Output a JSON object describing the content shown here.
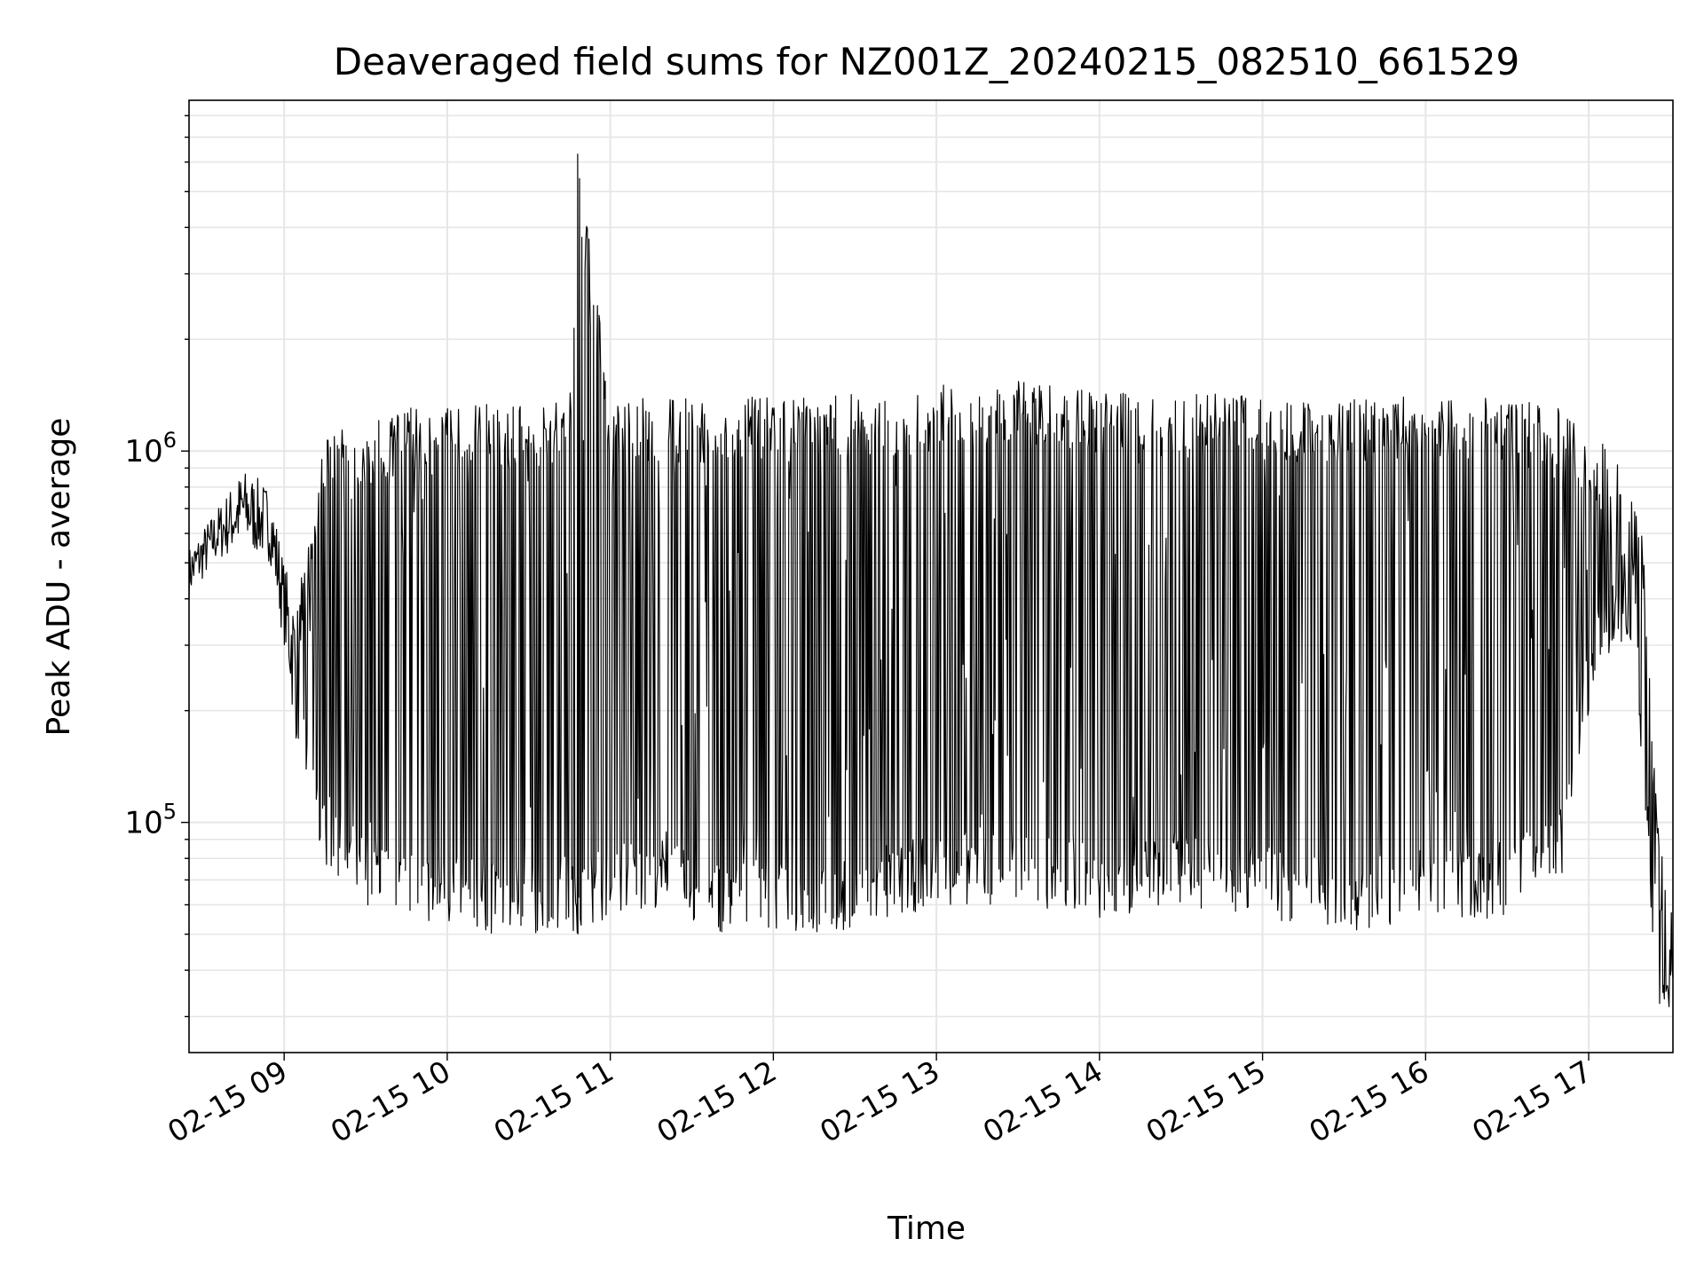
{
  "chart_data": {
    "type": "line",
    "title": "Deaveraged field sums for NZ001Z_20240215_082510_661529",
    "xlabel": "Time",
    "ylabel": "Peak ADU - average",
    "yscale": "log",
    "xlim": [
      "2024-02-15 08:25",
      "2024-02-15 17:31"
    ],
    "ylim": [
      24000,
      8800000
    ],
    "grid": true,
    "x_ticks": [
      "02-15 09",
      "02-15 10",
      "02-15 11",
      "02-15 12",
      "02-15 13",
      "02-15 14",
      "02-15 15",
      "02-15 16",
      "02-15 17"
    ],
    "y_ticks": [
      {
        "value": 100000,
        "base": "10",
        "exponent": "5"
      },
      {
        "value": 1000000,
        "base": "10",
        "exponent": "6"
      }
    ],
    "series": [
      {
        "color": "#000000",
        "envelope": {
          "time": [
            "2024-02-15 08:25",
            "2024-02-15 08:35",
            "2024-02-15 08:45",
            "2024-02-15 08:55",
            "2024-02-15 09:00",
            "2024-02-15 09:05",
            "2024-02-15 09:15",
            "2024-02-15 09:30",
            "2024-02-15 09:45",
            "2024-02-15 10:00",
            "2024-02-15 10:15",
            "2024-02-15 10:30",
            "2024-02-15 10:45",
            "2024-02-15 10:48",
            "2024-02-15 11:00",
            "2024-02-15 11:15",
            "2024-02-15 11:30",
            "2024-02-15 11:45",
            "2024-02-15 12:00",
            "2024-02-15 12:30",
            "2024-02-15 13:00",
            "2024-02-15 13:30",
            "2024-02-15 14:00",
            "2024-02-15 14:30",
            "2024-02-15 15:00",
            "2024-02-15 15:30",
            "2024-02-15 16:00",
            "2024-02-15 16:30",
            "2024-02-15 16:50",
            "2024-02-15 17:00",
            "2024-02-15 17:10",
            "2024-02-15 17:15",
            "2024-02-15 17:20",
            "2024-02-15 17:25",
            "2024-02-15 17:31"
          ],
          "upper": [
            550000,
            700000,
            900000,
            800000,
            500000,
            400000,
            1100000,
            1200000,
            1300000,
            1350000,
            1350000,
            1350000,
            1350000,
            6300000,
            1380000,
            1400000,
            1400000,
            1400000,
            1400000,
            1420000,
            1500000,
            1550000,
            1450000,
            1450000,
            1400000,
            1400000,
            1400000,
            1400000,
            1300000,
            1100000,
            1000000,
            800000,
            600000,
            120000,
            55000
          ],
          "lower": [
            400000,
            500000,
            550000,
            500000,
            300000,
            150000,
            70000,
            60000,
            55000,
            52000,
            50000,
            50000,
            52000,
            50000,
            55000,
            60000,
            52000,
            50000,
            50000,
            50000,
            60000,
            60000,
            55000,
            60000,
            55000,
            50000,
            55000,
            55000,
            70000,
            200000,
            300000,
            300000,
            100000,
            30000,
            30000
          ]
        }
      }
    ]
  }
}
